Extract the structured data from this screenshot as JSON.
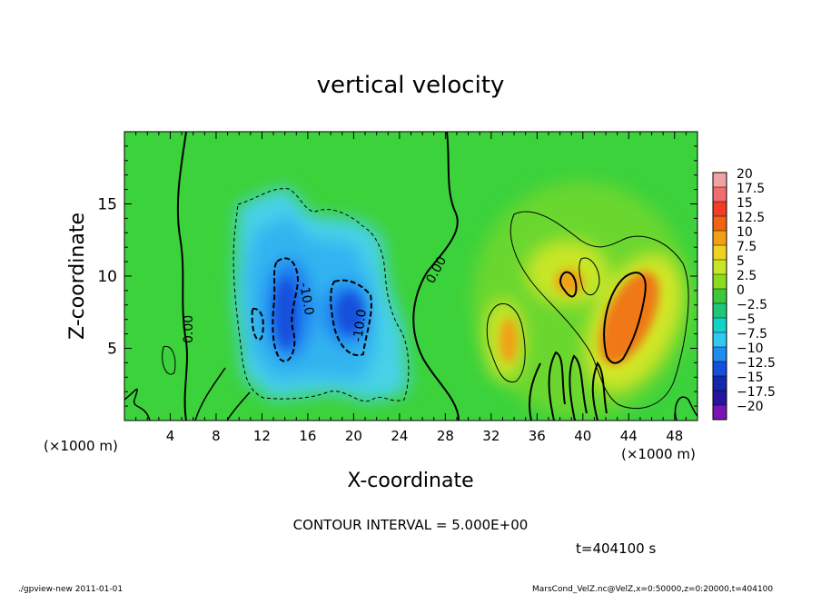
{
  "chart_data": {
    "type": "heatmap",
    "title": "vertical velocity",
    "xlabel": "X-coordinate",
    "ylabel": "Z-coordinate",
    "x_unit_left": "(×1000 m)",
    "x_unit_right": "(×1000 m)",
    "xlim": [
      0,
      50
    ],
    "ylim": [
      0,
      20
    ],
    "x_ticks": [
      "4",
      "8",
      "12",
      "16",
      "20",
      "24",
      "28",
      "32",
      "36",
      "40",
      "44",
      "48"
    ],
    "y_ticks": [
      "5",
      "10",
      "15"
    ],
    "x_tick_values": [
      4,
      8,
      12,
      16,
      20,
      24,
      28,
      32,
      36,
      40,
      44,
      48
    ],
    "y_tick_values": [
      5,
      10,
      15
    ],
    "colorbar_labels": [
      "20",
      "17.5",
      "15",
      "12.5",
      "10",
      "7.5",
      "5",
      "2.5",
      "0",
      "−2.5",
      "−5",
      "−7.5",
      "−10",
      "−12.5",
      "−15",
      "−17.5",
      "−20"
    ],
    "colorbar_colors": [
      "#f2a2a2",
      "#f06e6e",
      "#f03c28",
      "#f06414",
      "#f0a014",
      "#f0d21e",
      "#c8e628",
      "#8cdc1e",
      "#3cc83c",
      "#1ec878",
      "#14d2c8",
      "#32c8f0",
      "#1e8cf0",
      "#1450dc",
      "#1428aa",
      "#2814a0",
      "#7814b4"
    ],
    "contour_labels": [
      "0.00",
      "-10.0",
      "-10.0",
      "0.00"
    ],
    "contour_interval": "CONTOUR INTERVAL = 5.000E+00",
    "time_label": "t=404100 s",
    "footer_left": "./gpview-new   2011-01-01",
    "footer_right": "MarsCond_VelZ.nc@VelZ,x=0:50000,z=0:20000,t=404100"
  }
}
